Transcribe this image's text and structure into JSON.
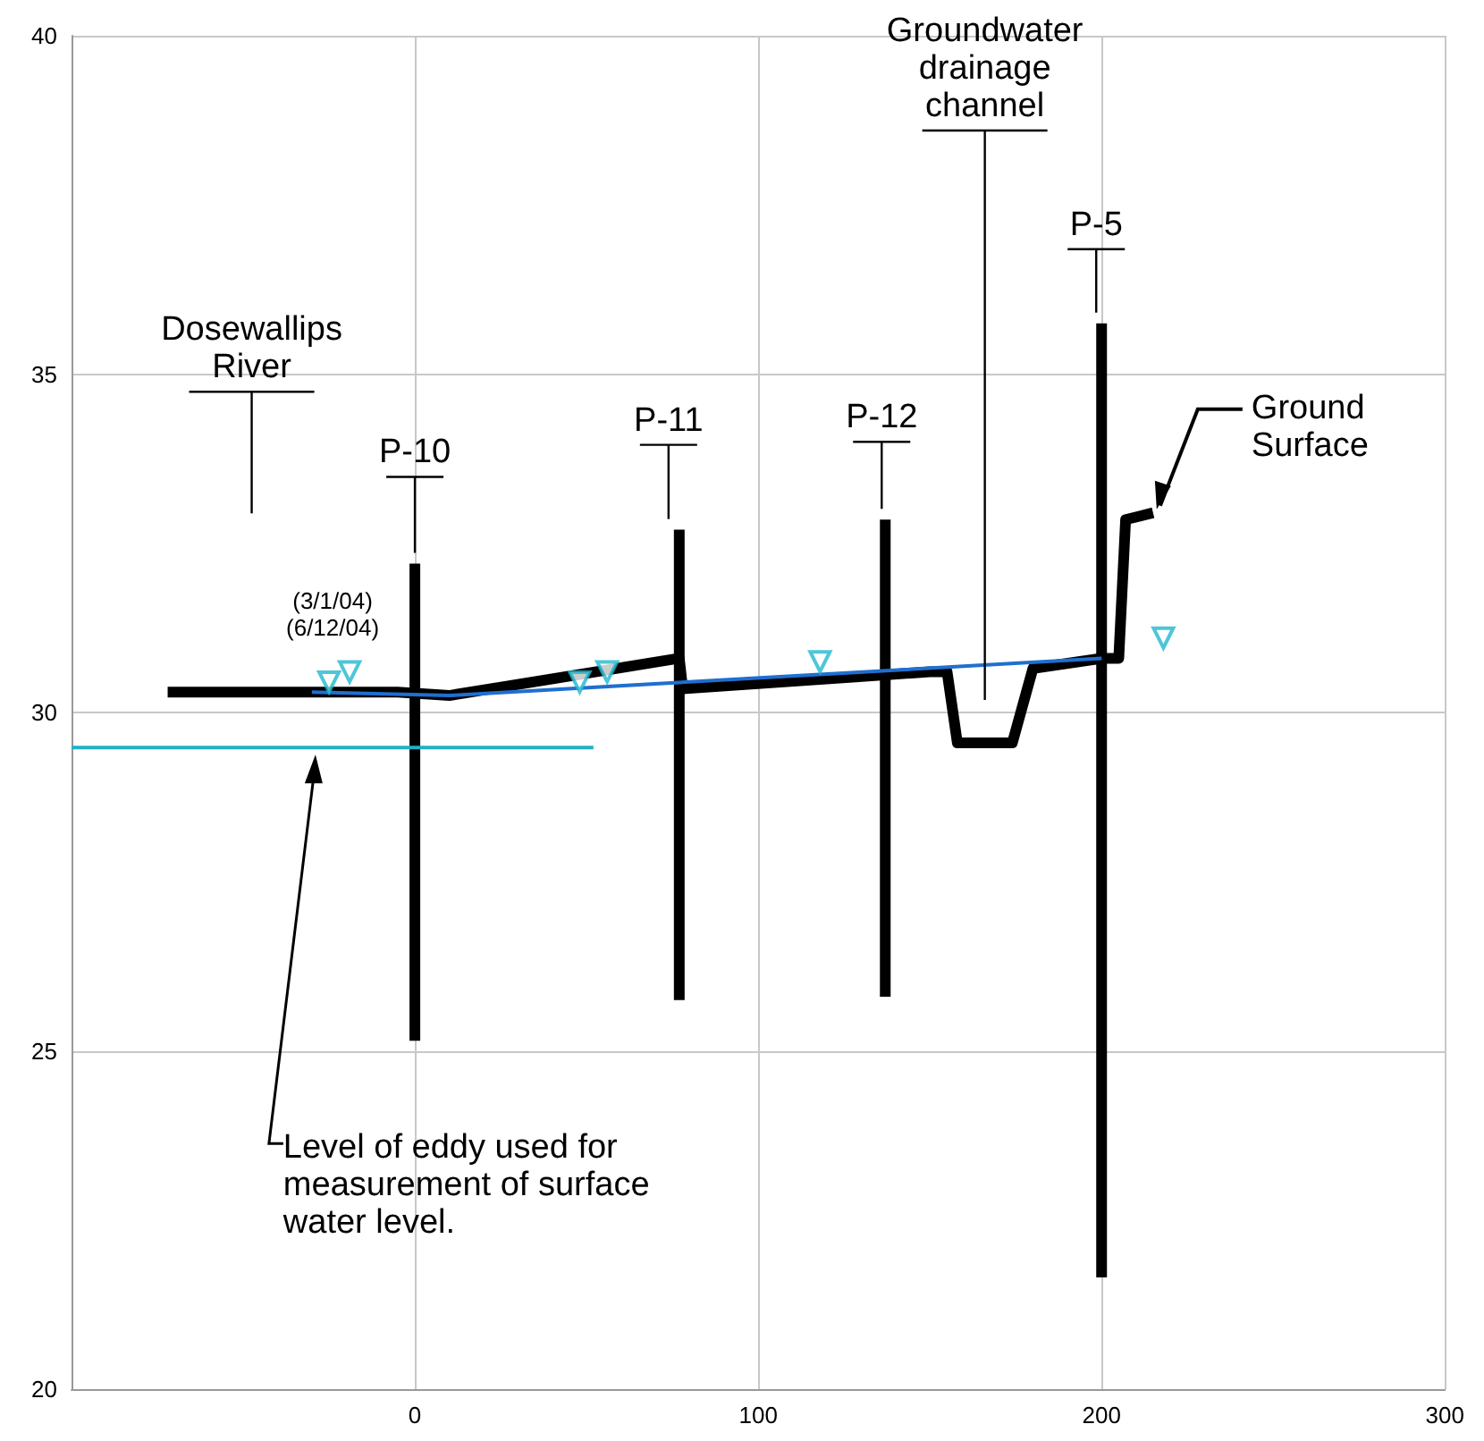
{
  "chart_data": {
    "type": "line",
    "xlim": [
      -100,
      300
    ],
    "xticks": [
      0,
      100,
      200,
      300
    ],
    "ylim": [
      20,
      40
    ],
    "yticks": [
      20,
      25,
      30,
      35,
      40
    ],
    "grid": true,
    "marker": "none",
    "series": [
      {
        "color": "#000000",
        "x": [
          -72,
          -5,
          10,
          77,
          78,
          150,
          155,
          158,
          174,
          180,
          200,
          205,
          207,
          215
        ],
        "values": [
          30.3,
          30.3,
          30.25,
          30.8,
          30.35,
          30.6,
          30.6,
          29.55,
          29.55,
          30.65,
          30.8,
          30.8,
          32.85,
          32.95
        ]
      },
      {
        "color": "#000000",
        "x": [
          0,
          0
        ],
        "values": [
          25.15,
          32.2
        ]
      },
      {
        "color": "#000000",
        "x": [
          77,
          77
        ],
        "values": [
          25.75,
          32.7
        ]
      },
      {
        "color": "#000000",
        "x": [
          137,
          137
        ],
        "values": [
          25.8,
          32.85
        ]
      },
      {
        "color": "#000000",
        "x": [
          200,
          200
        ],
        "values": [
          21.65,
          35.75
        ]
      },
      {
        "color": "#1f6fd0",
        "x": [
          -30,
          10,
          200
        ],
        "values": [
          30.3,
          30.25,
          30.8
        ]
      },
      {
        "color": "#20b0c8",
        "x": [
          -100,
          52
        ],
        "values": [
          29.48,
          29.48
        ]
      },
      {
        "type": "scatter",
        "marker": "triangle",
        "color": "#20b8d0",
        "x": [
          -25,
          -19,
          48,
          56,
          118,
          218
        ],
        "values": [
          30.45,
          30.6,
          30.45,
          30.6,
          30.75,
          31.1
        ]
      }
    ],
    "annotations": [
      "Dosewallips\nRiver",
      {
        "text": "(3/1/04)\n(6/12/04)",
        "x": -25,
        "y": 30.45
      },
      {
        "text": "P-10",
        "x": 0,
        "y": 32.2
      },
      {
        "text": "P-11",
        "x": 77,
        "y": 32.7
      },
      {
        "text": "P-12",
        "x": 137,
        "y": 32.85
      },
      "Groundwater\ndrainage\nchannel",
      {
        "text": "P-5",
        "x": 200,
        "y": 35.75
      },
      {
        "text": "Ground\nSurface",
        "x": 215,
        "y": 32.95
      },
      {
        "text": "Level of eddy used for\nmeasurement of surface\nwater level.",
        "x": -30,
        "y": 29.48
      }
    ]
  }
}
